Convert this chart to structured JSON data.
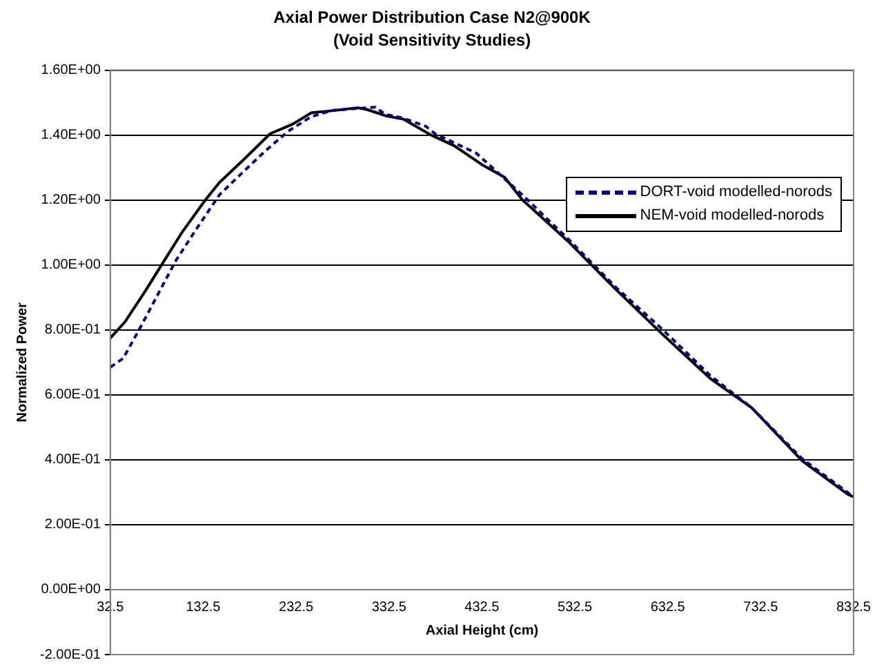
{
  "chart_data": {
    "type": "line",
    "title": "Axial Power Distribution Case N2@900K",
    "subtitle": "(Void Sensitivity Studies)",
    "xlabel": "Axial Height (cm)",
    "ylabel": "Normalized Power",
    "xlim": [
      32.5,
      832.5
    ],
    "xticks": [
      32.5,
      132.5,
      232.5,
      332.5,
      432.5,
      532.5,
      632.5,
      732.5,
      832.5
    ],
    "ylim": [
      -0.2,
      1.6
    ],
    "yticks": [
      {
        "value": -0.2,
        "label": "-2.00E-01"
      },
      {
        "value": 0,
        "label": "0.00E+00"
      },
      {
        "value": 0.2,
        "label": "2.00E-01"
      },
      {
        "value": 0.4,
        "label": "4.00E-01"
      },
      {
        "value": 0.6,
        "label": "6.00E-01"
      },
      {
        "value": 0.8,
        "label": "8.00E-01"
      },
      {
        "value": 1,
        "label": "1.00E+00"
      },
      {
        "value": 1.2,
        "label": "1.20E+00"
      },
      {
        "value": 1.4,
        "label": "1.40E+00"
      },
      {
        "value": 1.6,
        "label": "1.60E+00"
      }
    ],
    "grid": "y",
    "legend": "top right",
    "marker": "none",
    "series": [
      {
        "name": "DORT-void modelled-norods",
        "color": "#000080",
        "line_style": "dashed",
        "x": [
          32.5,
          46.3,
          63.6,
          83.3,
          103,
          125.2,
          150,
          177.1,
          199.3,
          224,
          249,
          271.3,
          298.5,
          317.8,
          328.4,
          348,
          372.2,
          382.1,
          426.6,
          475.9,
          527.8,
          577.1,
          626.6,
          678.4,
          722.9,
          777.1,
          832.5
        ],
        "values": [
          0.685,
          0.712,
          0.801,
          0.907,
          1.013,
          1.111,
          1.216,
          1.291,
          1.351,
          1.412,
          1.457,
          1.476,
          1.482,
          1.486,
          1.464,
          1.452,
          1.427,
          1.404,
          1.344,
          1.216,
          1.073,
          0.93,
          0.802,
          0.659,
          0.56,
          0.403,
          0.286
        ]
      },
      {
        "name": "NEM-void modelled-norods",
        "color": "#000000",
        "line_style": "solid",
        "x": [
          32.5,
          48.4,
          70.7,
          90.5,
          110.3,
          135,
          150,
          174.8,
          204.5,
          229,
          249,
          271.3,
          298.5,
          308.4,
          328.4,
          348,
          377.9,
          402.7,
          432.5,
          456.9,
          475.9,
          525.2,
          574.7,
          626.6,
          678.4,
          722.9,
          777.1,
          826.6,
          832.5
        ],
        "values": [
          0.775,
          0.825,
          0.922,
          1.013,
          1.103,
          1.201,
          1.254,
          1.321,
          1.404,
          1.434,
          1.469,
          1.475,
          1.484,
          1.479,
          1.46,
          1.449,
          1.4,
          1.367,
          1.309,
          1.27,
          1.201,
          1.073,
          0.93,
          0.787,
          0.65,
          0.56,
          0.397,
          0.293,
          0.286
        ]
      }
    ]
  }
}
